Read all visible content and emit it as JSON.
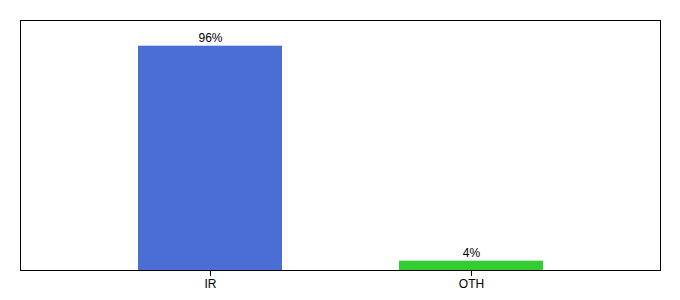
{
  "chart_data": {
    "type": "bar",
    "categories": [
      "IR",
      "OTH"
    ],
    "values": [
      96,
      4
    ],
    "value_labels": [
      "96%",
      "4%"
    ],
    "colors": [
      "#4a6ed4",
      "#33cc33"
    ],
    "ylim": [
      0,
      107
    ],
    "yticks": [],
    "tick_labels": "x",
    "data_labels": true
  }
}
